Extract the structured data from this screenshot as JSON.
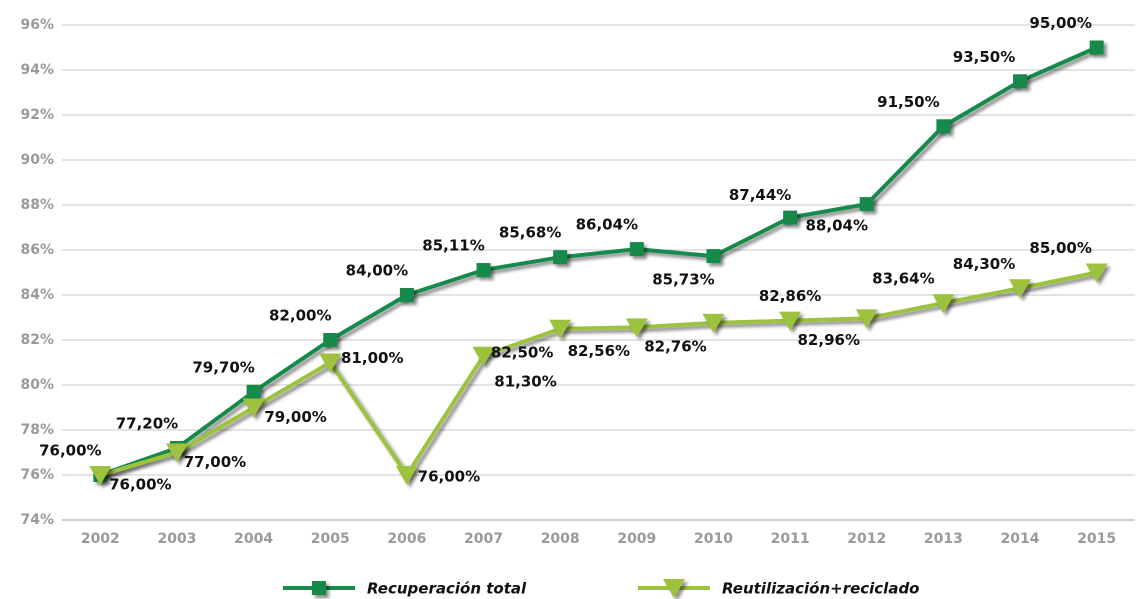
{
  "chart_data": {
    "type": "line",
    "categories": [
      "2002",
      "2003",
      "2004",
      "2005",
      "2006",
      "2007",
      "2008",
      "2009",
      "2010",
      "2011",
      "2012",
      "2013",
      "2014",
      "2015"
    ],
    "series": [
      {
        "name": "Recuperación total",
        "color": "#178a4c",
        "marker": "square",
        "values": [
          76,
          77.2,
          79.7,
          82,
          84,
          85.11,
          85.68,
          86.04,
          85.73,
          87.44,
          88.04,
          91.5,
          93.5,
          95
        ],
        "value_labels": [
          "76,00%",
          "77,20%",
          "79,70%",
          "82,00%",
          "84,00%",
          "85,11%",
          "85,68%",
          "86,04%",
          "85,73%",
          "87,44%",
          "88,04%",
          "91,50%",
          "93,50%",
          "95,00%"
        ]
      },
      {
        "name": "Reutilización+reciclado",
        "color": "#9dc23c",
        "marker": "triangle-down",
        "values": [
          76,
          77,
          79,
          81,
          76,
          81.3,
          82.5,
          82.56,
          82.76,
          82.86,
          82.96,
          83.64,
          84.3,
          85
        ],
        "value_labels": [
          "76,00%",
          "77,00%",
          "79,00%",
          "81,00%",
          "76,00%",
          "81,30%",
          "82,50%",
          "82,56%",
          "82,76%",
          "82,86%",
          "82,96%",
          "83,64%",
          "84,30%",
          "85,00%"
        ]
      }
    ],
    "ylim": [
      74,
      96
    ],
    "yticks": [
      {
        "value": 74,
        "label": "74%"
      },
      {
        "value": 76,
        "label": "76%"
      },
      {
        "value": 78,
        "label": "78%"
      },
      {
        "value": 80,
        "label": "80%"
      },
      {
        "value": 82,
        "label": "82%"
      },
      {
        "value": 84,
        "label": "84%"
      },
      {
        "value": 86,
        "label": "86%"
      },
      {
        "value": 88,
        "label": "88%"
      },
      {
        "value": 90,
        "label": "90%"
      },
      {
        "value": 92,
        "label": "92%"
      },
      {
        "value": 94,
        "label": "94%"
      },
      {
        "value": 96,
        "label": "96%"
      }
    ],
    "grid": true,
    "legend": "bottom"
  }
}
